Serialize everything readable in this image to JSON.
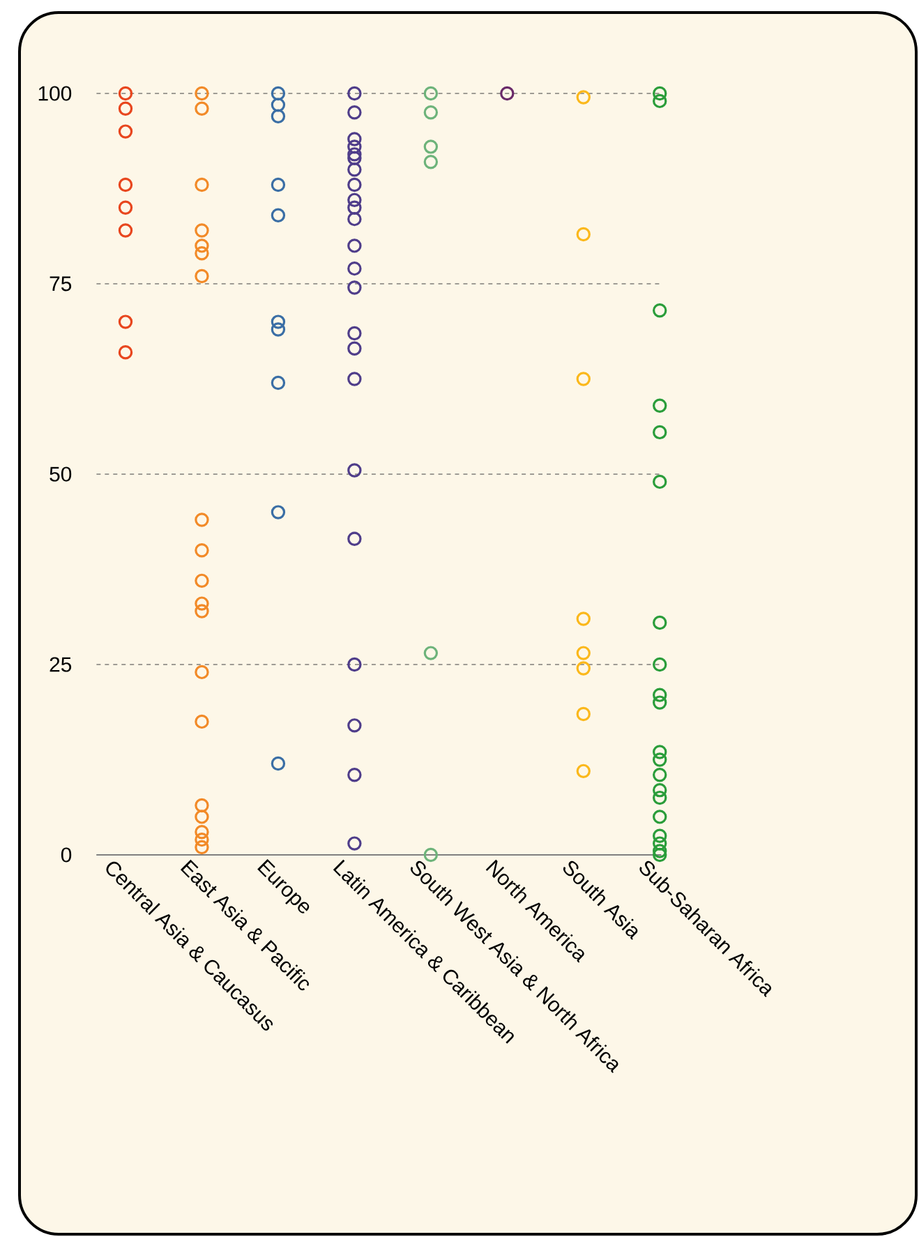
{
  "chart_data": {
    "type": "scatter",
    "categories": [
      "Central Asia & Caucasus",
      "East Asia & Pacific",
      "Europe",
      "Latin America & Caribbean",
      "South West Asia & North Africa",
      "North America",
      "South Asia",
      "Sub-Saharan Africa"
    ],
    "series": [
      {
        "color": "#e8461e",
        "x": [
          "Central Asia & Caucasus",
          "Central Asia & Caucasus",
          "Central Asia & Caucasus",
          "Central Asia & Caucasus",
          "Central Asia & Caucasus",
          "Central Asia & Caucasus",
          "Central Asia & Caucasus",
          "Central Asia & Caucasus"
        ],
        "values": [
          100,
          98,
          95,
          88,
          85,
          82,
          70,
          66
        ]
      },
      {
        "color": "#f28a28",
        "x": [
          "East Asia & Pacific",
          "East Asia & Pacific",
          "East Asia & Pacific",
          "East Asia & Pacific",
          "East Asia & Pacific",
          "East Asia & Pacific",
          "East Asia & Pacific",
          "East Asia & Pacific",
          "East Asia & Pacific",
          "East Asia & Pacific",
          "East Asia & Pacific",
          "East Asia & Pacific",
          "East Asia & Pacific",
          "East Asia & Pacific",
          "East Asia & Pacific",
          "East Asia & Pacific",
          "East Asia & Pacific",
          "East Asia & Pacific",
          "East Asia & Pacific"
        ],
        "values": [
          100,
          98,
          88,
          82,
          80,
          79,
          76,
          44,
          40,
          36,
          33,
          32,
          24,
          17.5,
          6.5,
          5,
          3,
          2,
          1
        ]
      },
      {
        "color": "#3a6ea5",
        "x": [
          "Europe",
          "Europe",
          "Europe",
          "Europe",
          "Europe",
          "Europe",
          "Europe",
          "Europe",
          "Europe",
          "Europe"
        ],
        "values": [
          100,
          98.5,
          97,
          88,
          84,
          70,
          69,
          62,
          45,
          12
        ]
      },
      {
        "color": "#4f3d8a",
        "x": [
          "Latin America & Caribbean",
          "Latin America & Caribbean",
          "Latin America & Caribbean",
          "Latin America & Caribbean",
          "Latin America & Caribbean",
          "Latin America & Caribbean",
          "Latin America & Caribbean",
          "Latin America & Caribbean",
          "Latin America & Caribbean",
          "Latin America & Caribbean",
          "Latin America & Caribbean",
          "Latin America & Caribbean",
          "Latin America & Caribbean",
          "Latin America & Caribbean",
          "Latin America & Caribbean",
          "Latin America & Caribbean",
          "Latin America & Caribbean",
          "Latin America & Caribbean",
          "Latin America & Caribbean",
          "Latin America & Caribbean",
          "Latin America & Caribbean",
          "Latin America & Caribbean",
          "Latin America & Caribbean"
        ],
        "values": [
          100,
          97.5,
          94,
          93,
          92,
          91.5,
          90,
          88,
          86,
          85,
          83.5,
          80,
          77,
          74.5,
          68.5,
          66.5,
          62.5,
          50.5,
          41.5,
          25,
          17,
          10.5,
          1.5
        ]
      },
      {
        "color": "#6db37a",
        "x": [
          "South West Asia & North Africa",
          "South West Asia & North Africa",
          "South West Asia & North Africa",
          "South West Asia & North Africa",
          "South West Asia & North Africa",
          "South West Asia & North Africa"
        ],
        "values": [
          100,
          97.5,
          93,
          91,
          26.5,
          0
        ]
      },
      {
        "color": "#6a2a6a",
        "x": [
          "North America"
        ],
        "values": [
          100
        ]
      },
      {
        "color": "#fbb81b",
        "x": [
          "South Asia",
          "South Asia",
          "South Asia",
          "South Asia",
          "South Asia",
          "South Asia",
          "South Asia",
          "South Asia"
        ],
        "values": [
          99.5,
          81.5,
          62.5,
          31,
          26.5,
          24.5,
          18.5,
          11
        ]
      },
      {
        "color": "#2a9d3a",
        "x": [
          "Sub-Saharan Africa",
          "Sub-Saharan Africa",
          "Sub-Saharan Africa",
          "Sub-Saharan Africa",
          "Sub-Saharan Africa",
          "Sub-Saharan Africa",
          "Sub-Saharan Africa",
          "Sub-Saharan Africa",
          "Sub-Saharan Africa",
          "Sub-Saharan Africa",
          "Sub-Saharan Africa",
          "Sub-Saharan Africa",
          "Sub-Saharan Africa",
          "Sub-Saharan Africa",
          "Sub-Saharan Africa",
          "Sub-Saharan Africa",
          "Sub-Saharan Africa",
          "Sub-Saharan Africa",
          "Sub-Saharan Africa",
          "Sub-Saharan Africa"
        ],
        "values": [
          100,
          99,
          71.5,
          59,
          55.5,
          49,
          30.5,
          25,
          21,
          20,
          13.5,
          12.5,
          10.5,
          8.5,
          7.5,
          5,
          2.5,
          1.5,
          0.5,
          0
        ]
      }
    ],
    "ylim": [
      0,
      100
    ],
    "yticks": [
      0,
      25,
      50,
      75,
      100
    ],
    "grid": "y",
    "marker": "circle"
  }
}
